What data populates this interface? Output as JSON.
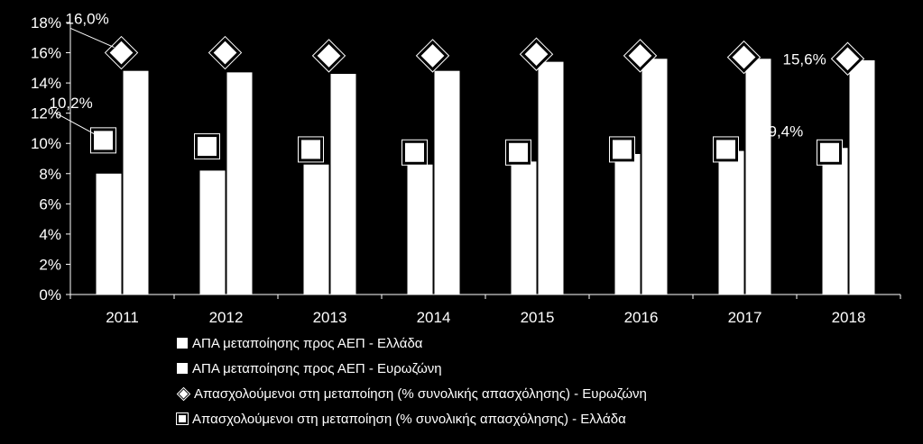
{
  "chart_data": {
    "type": "bar",
    "categories": [
      "2011",
      "2012",
      "2013",
      "2014",
      "2015",
      "2016",
      "2017",
      "2018"
    ],
    "series": [
      {
        "name": "ΑΠΑ μεταποίησης προς ΑΕΠ - Ελλάδα",
        "kind": "bar",
        "values": [
          8.0,
          8.2,
          8.6,
          8.6,
          8.8,
          9.3,
          9.5,
          9.7
        ],
        "color": "#ffffff"
      },
      {
        "name": "ΑΠΑ μεταποίησης προς ΑΕΠ - Ευρωζώνη",
        "kind": "bar",
        "values": [
          14.8,
          14.7,
          14.6,
          14.8,
          15.4,
          15.6,
          15.6,
          15.5
        ],
        "color": "#ffffff"
      },
      {
        "name": "Απασχολούμενοι στη μεταποίηση (% συνολικής απασχόλησης) - Ευρωζώνη",
        "kind": "marker-diamond",
        "values": [
          16.0,
          16.0,
          15.8,
          15.8,
          15.9,
          15.8,
          15.7,
          15.6
        ],
        "color": "#ffffff"
      },
      {
        "name": "Απασχολούμενοι στη μεταποίηση (% συνολικής απασχόλησης) - Ελλάδα",
        "kind": "marker-square",
        "values": [
          10.2,
          9.8,
          9.6,
          9.4,
          9.4,
          9.6,
          9.6,
          9.4
        ],
        "color": "#ffffff"
      }
    ],
    "y_ticks": [
      "0%",
      "2%",
      "4%",
      "6%",
      "8%",
      "10%",
      "12%",
      "14%",
      "16%",
      "18%"
    ],
    "ylim": [
      0,
      18
    ],
    "data_labels": [
      {
        "text": "16,0%",
        "series": 2,
        "index": 0
      },
      {
        "text": "10,2%",
        "series": 3,
        "index": 0
      },
      {
        "text": "15,6%",
        "series": 2,
        "index": 7
      },
      {
        "text": "9,4%",
        "series": 3,
        "index": 7
      }
    ],
    "title": "",
    "xlabel": "",
    "ylabel": "",
    "grid": false,
    "legend_position": "bottom",
    "background": "#000000",
    "foreground": "#ffffff"
  }
}
